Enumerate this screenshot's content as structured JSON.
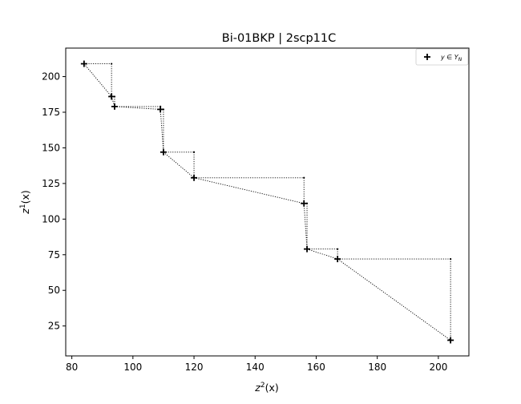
{
  "chart_data": {
    "type": "scatter",
    "title": "Bi-01BKP | 2scp11C",
    "xlabel": {
      "base": "z",
      "sup": "2",
      "rest": "(x)"
    },
    "ylabel": {
      "base": "z",
      "sup": "1",
      "rest": "(x)"
    },
    "xlim": [
      78,
      210
    ],
    "ylim": [
      4,
      220
    ],
    "xticks": [
      80,
      100,
      120,
      140,
      160,
      180,
      200
    ],
    "yticks": [
      25,
      50,
      75,
      100,
      125,
      150,
      175,
      200
    ],
    "legend": {
      "position": "top-right",
      "label": "y ∈ Y_N"
    },
    "series": [
      {
        "name": "y ∈ Y_N",
        "marker": "+",
        "color": "#000000",
        "points": [
          [
            84,
            209
          ],
          [
            93,
            186
          ],
          [
            94,
            179
          ],
          [
            109,
            177
          ],
          [
            110,
            147
          ],
          [
            120,
            129
          ],
          [
            156,
            111
          ],
          [
            157,
            79
          ],
          [
            167,
            72
          ],
          [
            204,
            15
          ]
        ]
      }
    ],
    "staircase_corners": [
      [
        93,
        209
      ],
      [
        94,
        186
      ],
      [
        109,
        179
      ],
      [
        110,
        177
      ],
      [
        120,
        147
      ],
      [
        156,
        129
      ],
      [
        157,
        111
      ],
      [
        167,
        79
      ],
      [
        204,
        72
      ]
    ],
    "line_style": "dotted",
    "grid": false
  }
}
